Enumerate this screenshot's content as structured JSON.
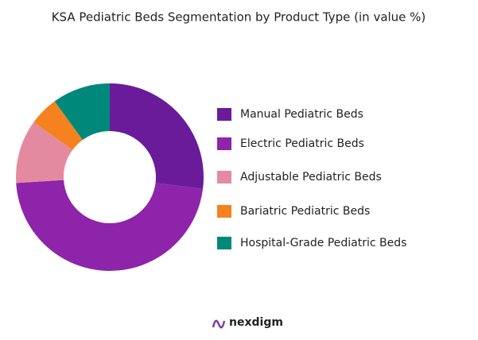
{
  "chart_data": {
    "type": "donut",
    "title": "KSA Pediatric Beds Segmentation by Product Type (in value %)",
    "series": [
      {
        "name": "Manual Pediatric Beds",
        "color": "#6a1b9a",
        "values": [
          27
        ]
      },
      {
        "name": "Electric Pediatric Beds",
        "color": "#8e24aa",
        "values": [
          47
        ]
      },
      {
        "name": "Adjustable Pediatric Beds",
        "color": "#e48aa0",
        "values": [
          11
        ]
      },
      {
        "name": "Bariatric Pediatric Beds",
        "color": "#f5821f",
        "values": [
          5
        ]
      },
      {
        "name": "Hospital-Grade Pediatric Beds",
        "color": "#00897b",
        "values": [
          10
        ]
      }
    ],
    "legend": "right",
    "logo": "nexdigm"
  }
}
